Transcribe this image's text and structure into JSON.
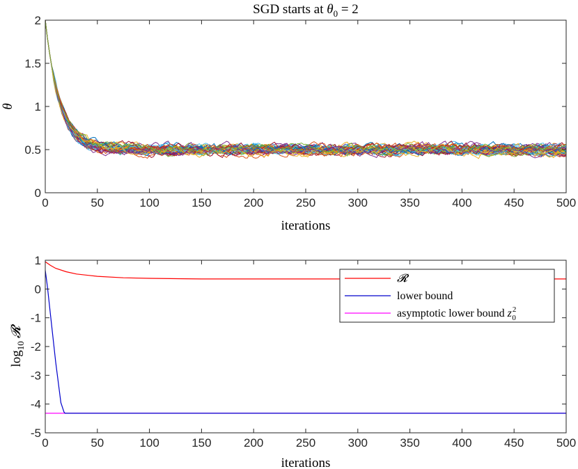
{
  "chart_data": [
    {
      "type": "line",
      "title": "SGD starts at θ₀ = 2",
      "title_parts": {
        "prefix": "SGD starts at ",
        "sym": "θ",
        "sub": "0",
        "suffix": " = 2"
      },
      "xlabel": "iterations",
      "ylabel": "θ",
      "xlim": [
        0,
        500
      ],
      "ylim": [
        0,
        2
      ],
      "xticks": [
        0,
        50,
        100,
        150,
        200,
        250,
        300,
        350,
        400,
        450,
        500
      ],
      "yticks": [
        0,
        0.5,
        1,
        1.5,
        2
      ],
      "ytick_labels": [
        "0",
        "0.5",
        "1",
        "1.5",
        "2"
      ],
      "initial_value": 2,
      "plateau_mean": 0.5,
      "plateau_spread": 0.1,
      "n_runs": 40,
      "run_colors": [
        "#0072BD",
        "#D95319",
        "#EDB120",
        "#7E2F8E",
        "#77AC30",
        "#4DBEEE",
        "#A2142F"
      ],
      "note": "Multiple SGD runs decaying from 2 to a noisy plateau near 0.5"
    },
    {
      "type": "line",
      "xlabel": "iterations",
      "ylabel": "log₁₀ 𝓡",
      "ylabel_parts": {
        "prefix": "log",
        "sub": "10",
        "sym": "𝓡"
      },
      "xlim": [
        0,
        500
      ],
      "ylim": [
        -5,
        1
      ],
      "xticks": [
        0,
        50,
        100,
        150,
        200,
        250,
        300,
        350,
        400,
        450,
        500
      ],
      "yticks": [
        -5,
        -4,
        -3,
        -2,
        -1,
        0,
        1
      ],
      "ytick_labels": [
        "-5",
        "-4",
        "-3",
        "-2",
        "-1",
        "0",
        "1"
      ],
      "legend_position": "top-right",
      "series": [
        {
          "name": "𝓡",
          "color": "#FF0000",
          "x": [
            0,
            5,
            10,
            20,
            30,
            50,
            75,
            100,
            150,
            200,
            300,
            400,
            500
          ],
          "y": [
            0.95,
            0.82,
            0.72,
            0.6,
            0.52,
            0.44,
            0.39,
            0.37,
            0.35,
            0.35,
            0.35,
            0.35,
            0.35
          ]
        },
        {
          "name": "lower bound",
          "color": "#0000CC",
          "x": [
            0,
            2,
            5,
            10,
            15,
            18,
            19,
            20,
            500
          ],
          "y": [
            0.65,
            0.1,
            -0.9,
            -2.55,
            -3.95,
            -4.28,
            -4.32,
            -4.32,
            -4.32
          ]
        },
        {
          "name": "asymptotic lower bound z₀²",
          "name_parts": {
            "prefix": "asymptotic lower bound ",
            "sym": "z",
            "sub": "0",
            "sup": "2"
          },
          "color": "#FF00FF",
          "x": [
            0,
            500
          ],
          "y": [
            -4.32,
            -4.32
          ]
        }
      ]
    }
  ]
}
